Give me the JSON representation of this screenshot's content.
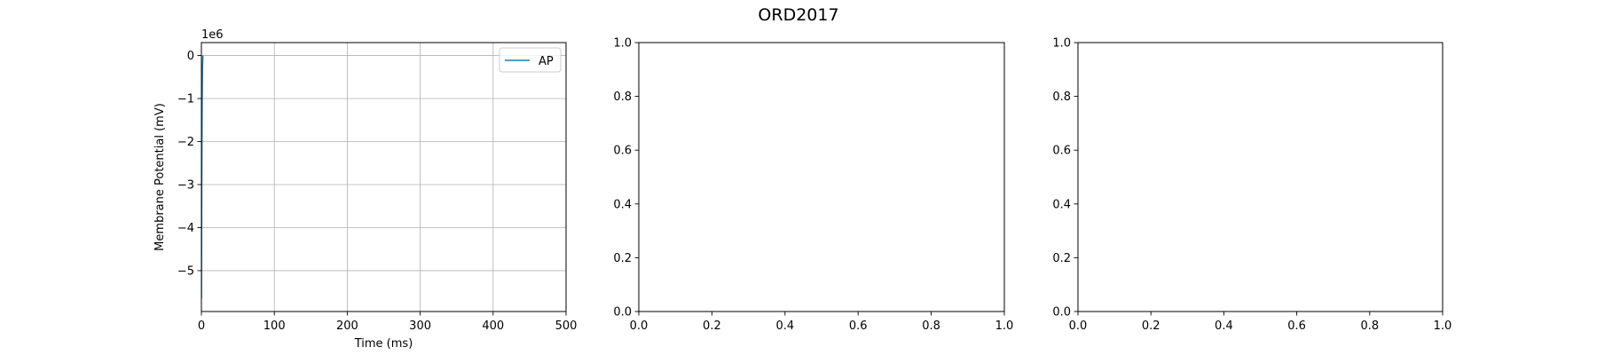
{
  "figure": {
    "title": "ORD2017"
  },
  "chart_data": [
    {
      "type": "line",
      "title": "",
      "xlabel": "Time (ms)",
      "ylabel": "Membrane Potential (mV)",
      "y_offset_text": "1e6",
      "xlim": [
        0,
        500
      ],
      "ylim": [
        -5.95,
        0.3
      ],
      "xticks": [
        0,
        100,
        200,
        300,
        400,
        500
      ],
      "yticks": [
        0,
        -1,
        -2,
        -3,
        -4,
        -5
      ],
      "grid": true,
      "legend": "top-right",
      "series": [
        {
          "name": "AP",
          "color": "#1f77b4",
          "x": [
            0,
            0.2,
            0.5,
            1,
            1.5,
            2
          ],
          "y": [
            -5.65,
            -4.5,
            -2.8,
            -1.2,
            -0.3,
            0
          ]
        }
      ]
    },
    {
      "type": "line",
      "title": "",
      "xlabel": "",
      "ylabel": "",
      "xlim": [
        0,
        1
      ],
      "ylim": [
        0,
        1
      ],
      "xticks": [
        0.0,
        0.2,
        0.4,
        0.6,
        0.8,
        1.0
      ],
      "yticks": [
        0.0,
        0.2,
        0.4,
        0.6,
        0.8,
        1.0
      ],
      "grid": false,
      "series": []
    },
    {
      "type": "line",
      "title": "",
      "xlabel": "",
      "ylabel": "",
      "xlim": [
        0,
        1
      ],
      "ylim": [
        0,
        1
      ],
      "xticks": [
        0.0,
        0.2,
        0.4,
        0.6,
        0.8,
        1.0
      ],
      "yticks": [
        0.0,
        0.2,
        0.4,
        0.6,
        0.8,
        1.0
      ],
      "grid": false,
      "series": []
    }
  ]
}
